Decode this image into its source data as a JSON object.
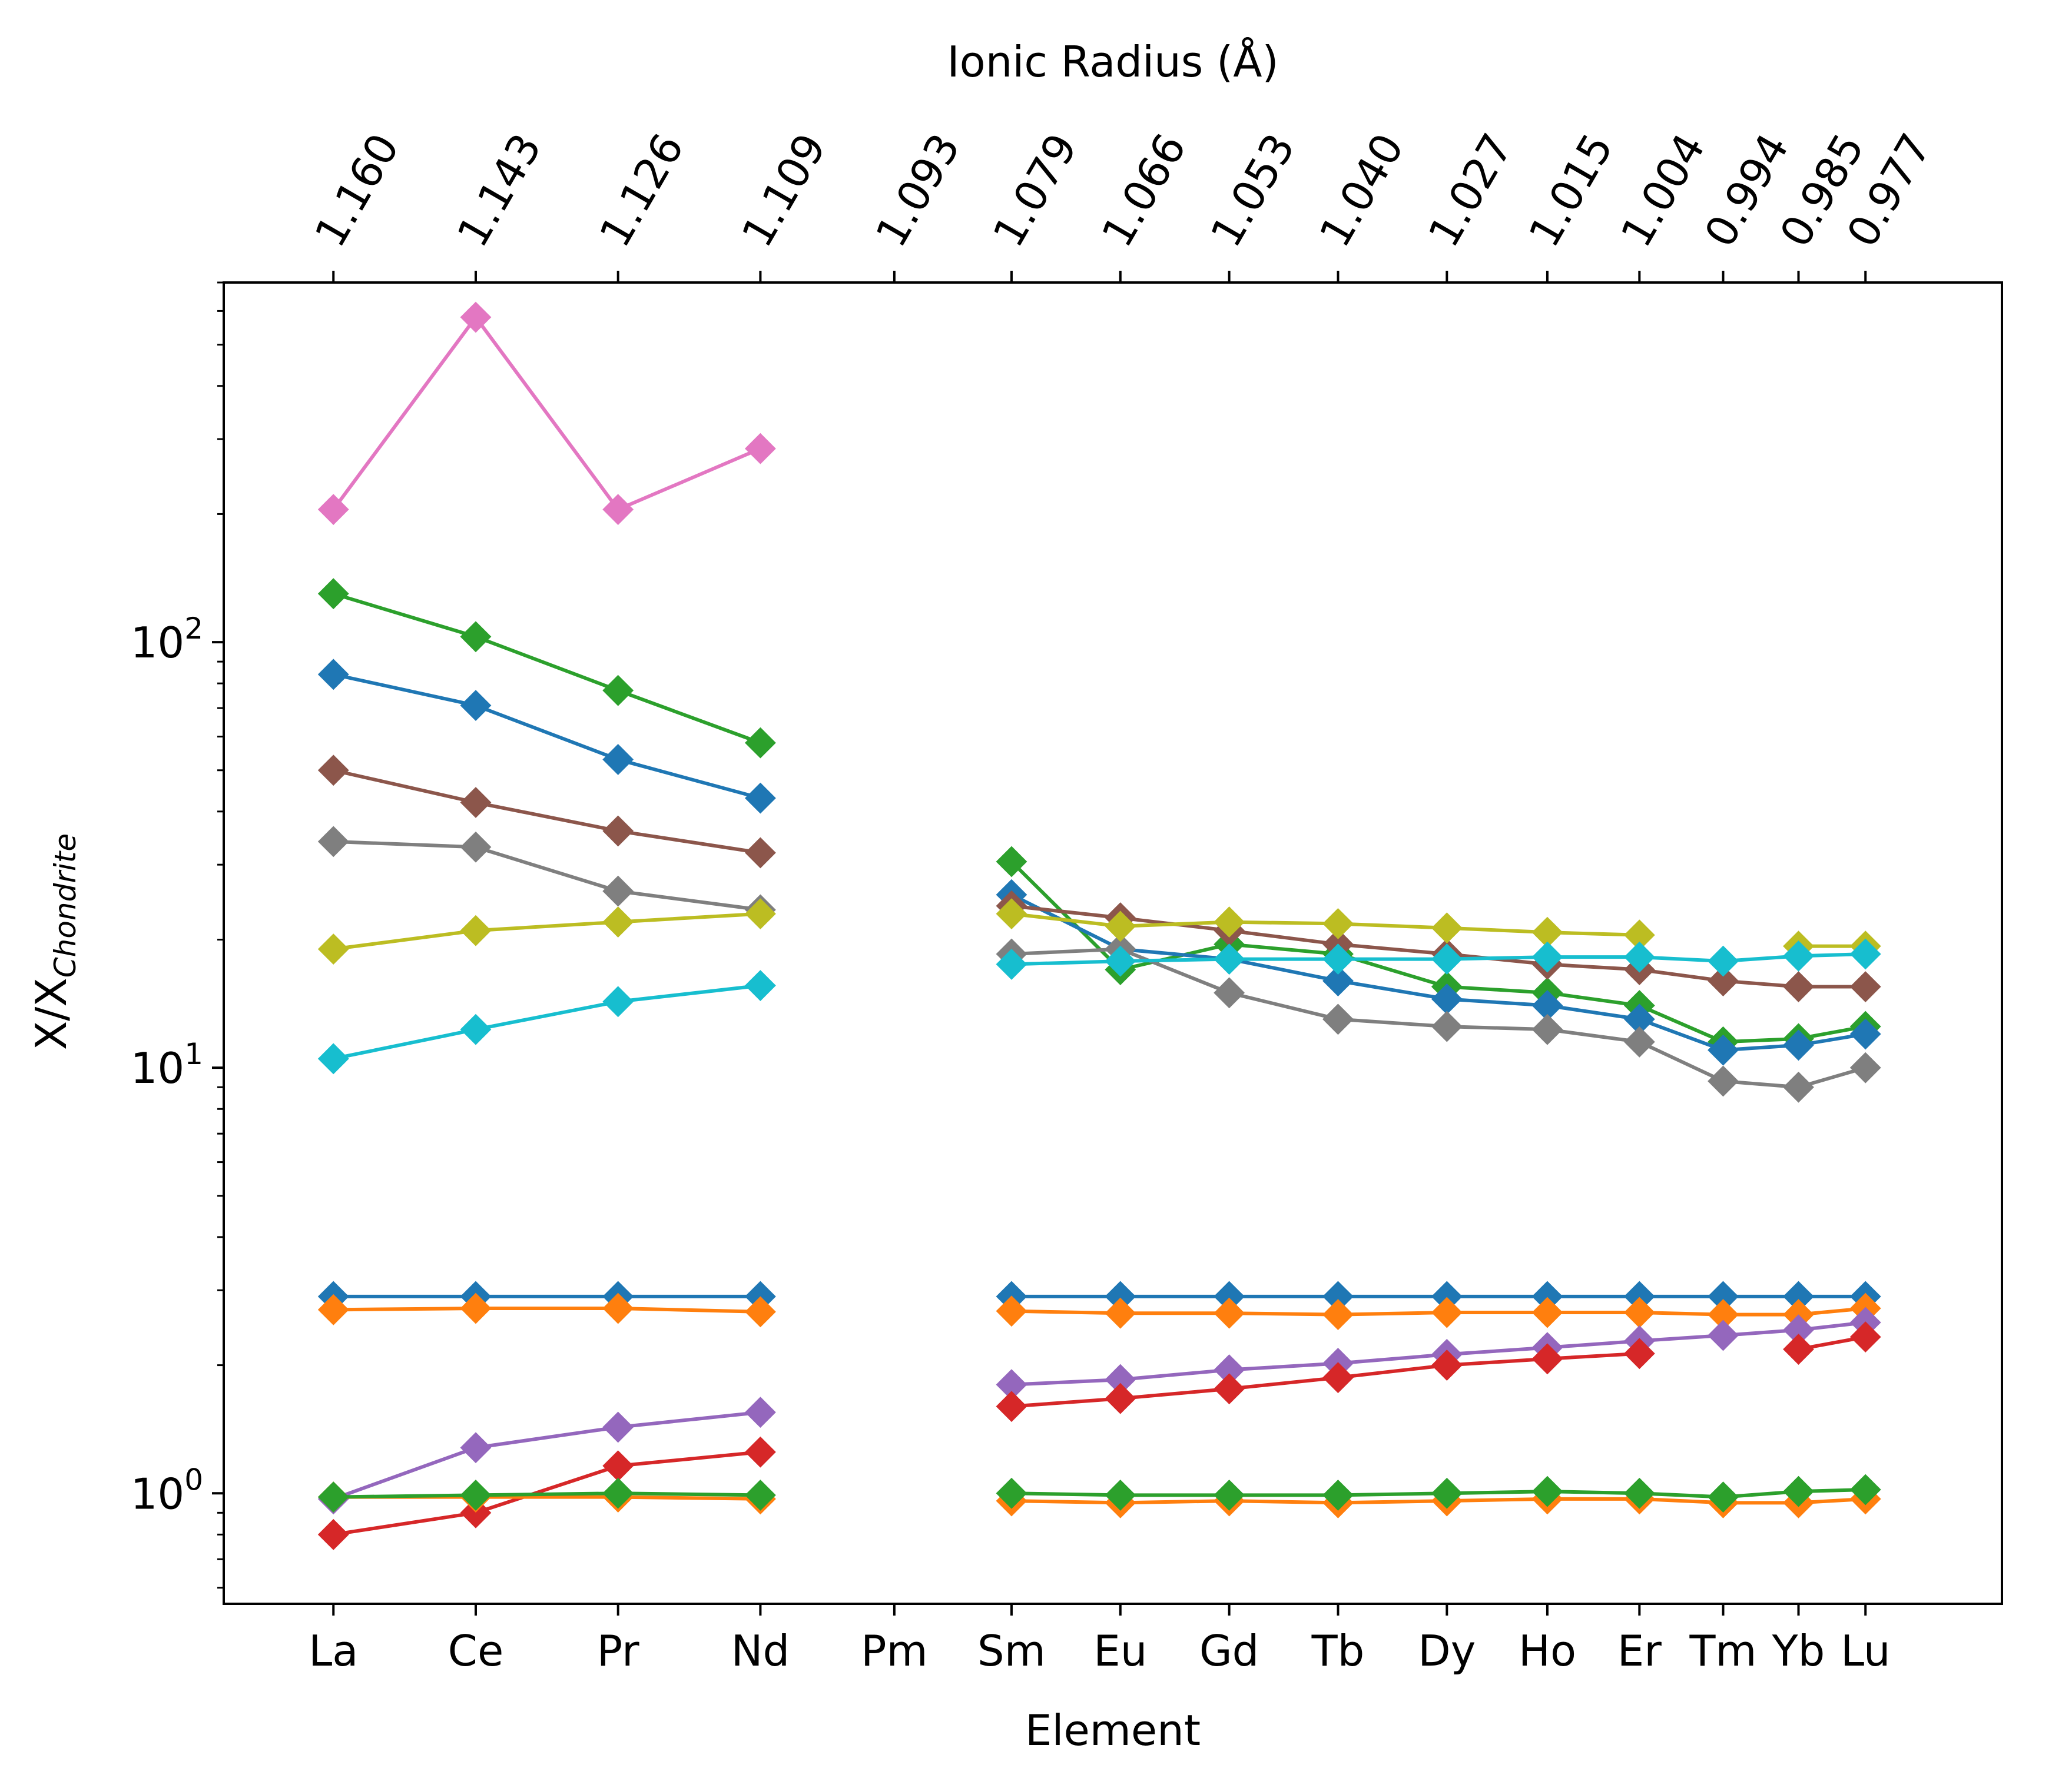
{
  "chart_data": {
    "type": "line",
    "xlabel": "Element",
    "x2label": "Ionic Radius (Å)",
    "ylabel_main": "X/X",
    "ylabel_sub": "Chondrite",
    "yscale": "log",
    "ylim": [
      0.55,
      700
    ],
    "yticks": [
      {
        "value": 1,
        "base": "10",
        "exp": "0"
      },
      {
        "value": 10,
        "base": "10",
        "exp": "1"
      },
      {
        "value": 100,
        "base": "10",
        "exp": "2"
      }
    ],
    "grid": false,
    "marker": "diamond",
    "elements": [
      "La",
      "Ce",
      "Pr",
      "Nd",
      "Pm",
      "Sm",
      "Eu",
      "Gd",
      "Tb",
      "Dy",
      "Ho",
      "Er",
      "Tm",
      "Yb",
      "Lu"
    ],
    "ionic_radius": [
      "1.160",
      "1.143",
      "1.126",
      "1.109",
      "1.093",
      "1.079",
      "1.066",
      "1.053",
      "1.040",
      "1.027",
      "1.015",
      "1.004",
      "0.994",
      "0.985",
      "0.977"
    ],
    "x_values": [
      1.16,
      1.143,
      1.126,
      1.109,
      1.093,
      1.079,
      1.066,
      1.053,
      1.04,
      1.027,
      1.015,
      1.004,
      0.994,
      0.985,
      0.977
    ],
    "series": [
      {
        "color": "#e377c2",
        "values": [
          205,
          580,
          205,
          285,
          null,
          null,
          null,
          null,
          null,
          null,
          null,
          null,
          null,
          null,
          null
        ]
      },
      {
        "color": "#2ca02c",
        "values": [
          130,
          103,
          77,
          58,
          null,
          30.5,
          17,
          19.5,
          18.5,
          15.5,
          15,
          14,
          11.5,
          11.7,
          12.5
        ]
      },
      {
        "color": "#1f77b4",
        "values": [
          84,
          71,
          53,
          43,
          null,
          25.5,
          19,
          18,
          16,
          14.5,
          14,
          13,
          11,
          11.3,
          12
        ]
      },
      {
        "color": "#8c564b",
        "values": [
          50,
          42,
          36,
          32,
          null,
          24,
          22.5,
          21,
          19.5,
          18.5,
          17.5,
          17,
          16,
          15.5,
          15.5
        ]
      },
      {
        "color": "#7f7f7f",
        "values": [
          34,
          33,
          26,
          23.5,
          null,
          18.5,
          19,
          15,
          13,
          12.5,
          12.3,
          11.5,
          9.3,
          9,
          10
        ]
      },
      {
        "color": "#bcbd22",
        "values": [
          19,
          21,
          22,
          23,
          null,
          23,
          21.5,
          22,
          21.8,
          21.3,
          20.8,
          20.5,
          null,
          19.3,
          19.3
        ]
      },
      {
        "color": "#17becf",
        "values": [
          10.5,
          12.3,
          14.3,
          15.6,
          null,
          17.5,
          17.8,
          18,
          18,
          18,
          18.2,
          18.2,
          17.8,
          18.3,
          18.5
        ]
      },
      {
        "color": "#1f77b4",
        "values": [
          2.9,
          2.9,
          2.9,
          2.9,
          null,
          2.9,
          2.9,
          2.9,
          2.9,
          2.9,
          2.9,
          2.9,
          2.9,
          2.9,
          2.9
        ]
      },
      {
        "color": "#ff7f0e",
        "values": [
          2.7,
          2.72,
          2.72,
          2.67,
          null,
          2.68,
          2.65,
          2.65,
          2.63,
          2.66,
          2.66,
          2.66,
          2.63,
          2.63,
          2.72
        ]
      },
      {
        "color": "#9467bd",
        "values": [
          0.97,
          1.28,
          1.43,
          1.55,
          null,
          1.8,
          1.85,
          1.95,
          2.02,
          2.12,
          2.2,
          2.28,
          2.35,
          2.42,
          2.52
        ]
      },
      {
        "color": "#d62728",
        "values": [
          0.8,
          0.9,
          1.16,
          1.25,
          null,
          1.6,
          1.67,
          1.76,
          1.87,
          2.0,
          2.07,
          2.13,
          null,
          2.18,
          2.33
        ]
      },
      {
        "color": "#ff7f0e",
        "values": [
          0.98,
          0.98,
          0.98,
          0.97,
          null,
          0.96,
          0.95,
          0.96,
          0.95,
          0.96,
          0.97,
          0.97,
          0.95,
          0.95,
          0.97
        ]
      },
      {
        "color": "#2ca02c",
        "values": [
          0.98,
          0.99,
          1.0,
          0.99,
          null,
          1.0,
          0.99,
          0.99,
          0.99,
          1.0,
          1.01,
          1.0,
          0.98,
          1.01,
          1.02
        ]
      }
    ]
  }
}
